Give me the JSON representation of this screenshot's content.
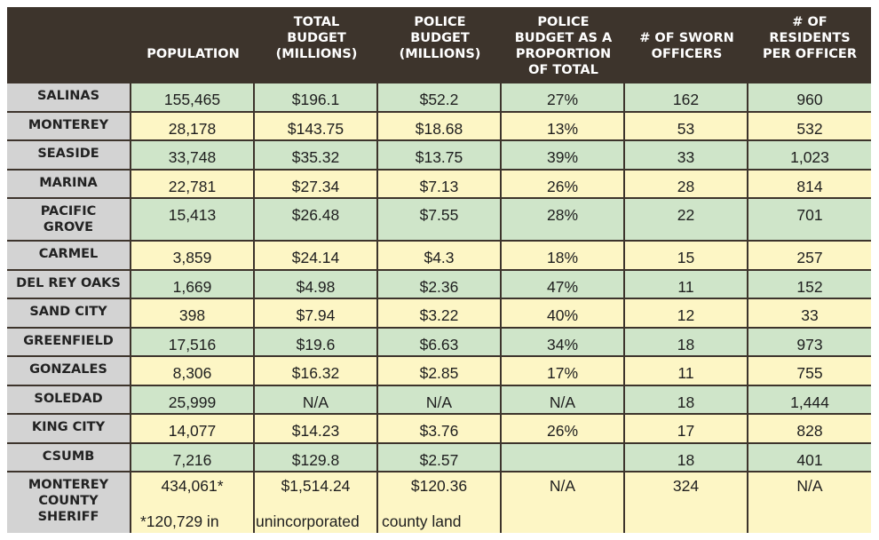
{
  "headers": [
    "",
    "POPULATION",
    "TOTAL BUDGET (MILLIONS)",
    "POLICE BUDGET (MILLIONS)",
    "POLICE BUDGET AS A PROPORTION OF TOTAL",
    "# OF SWORN OFFICERS",
    "# OF RESIDENTS PER OFFICER"
  ],
  "rows": [
    {
      "name": "SALINAS",
      "cells": [
        "155,465",
        "$196.1",
        "$52.2",
        "27%",
        "162",
        "960"
      ]
    },
    {
      "name": "MONTEREY",
      "cells": [
        "28,178",
        "$143.75",
        "$18.68",
        "13%",
        "53",
        "532"
      ]
    },
    {
      "name": "SEASIDE",
      "cells": [
        "33,748",
        "$35.32",
        "$13.75",
        "39%",
        "33",
        "1,023"
      ]
    },
    {
      "name": "MARINA",
      "cells": [
        "22,781",
        "$27.34",
        "$7.13",
        "26%",
        "28",
        "814"
      ]
    },
    {
      "name": "PACIFIC GROVE",
      "cells": [
        "15,413",
        "$26.48",
        "$7.55",
        "28%",
        "22",
        "701"
      ]
    },
    {
      "name": "CARMEL",
      "cells": [
        "3,859",
        "$24.14",
        "$4.3",
        "18%",
        "15",
        "257"
      ]
    },
    {
      "name": "DEL REY OAKS",
      "cells": [
        "1,669",
        "$4.98",
        "$2.36",
        "47%",
        "11",
        "152"
      ]
    },
    {
      "name": "SAND CITY",
      "cells": [
        "398",
        "$7.94",
        "$3.22",
        "40%",
        "12",
        "33"
      ]
    },
    {
      "name": "GREENFIELD",
      "cells": [
        "17,516",
        "$19.6",
        "$6.63",
        "34%",
        "18",
        "973"
      ]
    },
    {
      "name": "GONZALES",
      "cells": [
        "8,306",
        "$16.32",
        "$2.85",
        "17%",
        "11",
        "755"
      ]
    },
    {
      "name": "SOLEDAD",
      "cells": [
        "25,999",
        "N/A",
        "N/A",
        "N/A",
        "18",
        "1,444"
      ]
    },
    {
      "name": "KING CITY",
      "cells": [
        "14,077",
        "$14.23",
        "$3.76",
        "26%",
        "17",
        "828"
      ]
    },
    {
      "name": "CSUMB",
      "cells": [
        "7,216",
        "$129.8",
        "$2.57",
        "",
        "18",
        "401"
      ]
    },
    {
      "name": "MONTEREY COUNTY SHERIFF",
      "cells": [
        "434,061*",
        "$1,514.24",
        "$120.36",
        "N/A",
        "324",
        "N/A"
      ]
    }
  ],
  "footnote": [
    "*120,729 in",
    "unincorporated",
    "county land"
  ]
}
